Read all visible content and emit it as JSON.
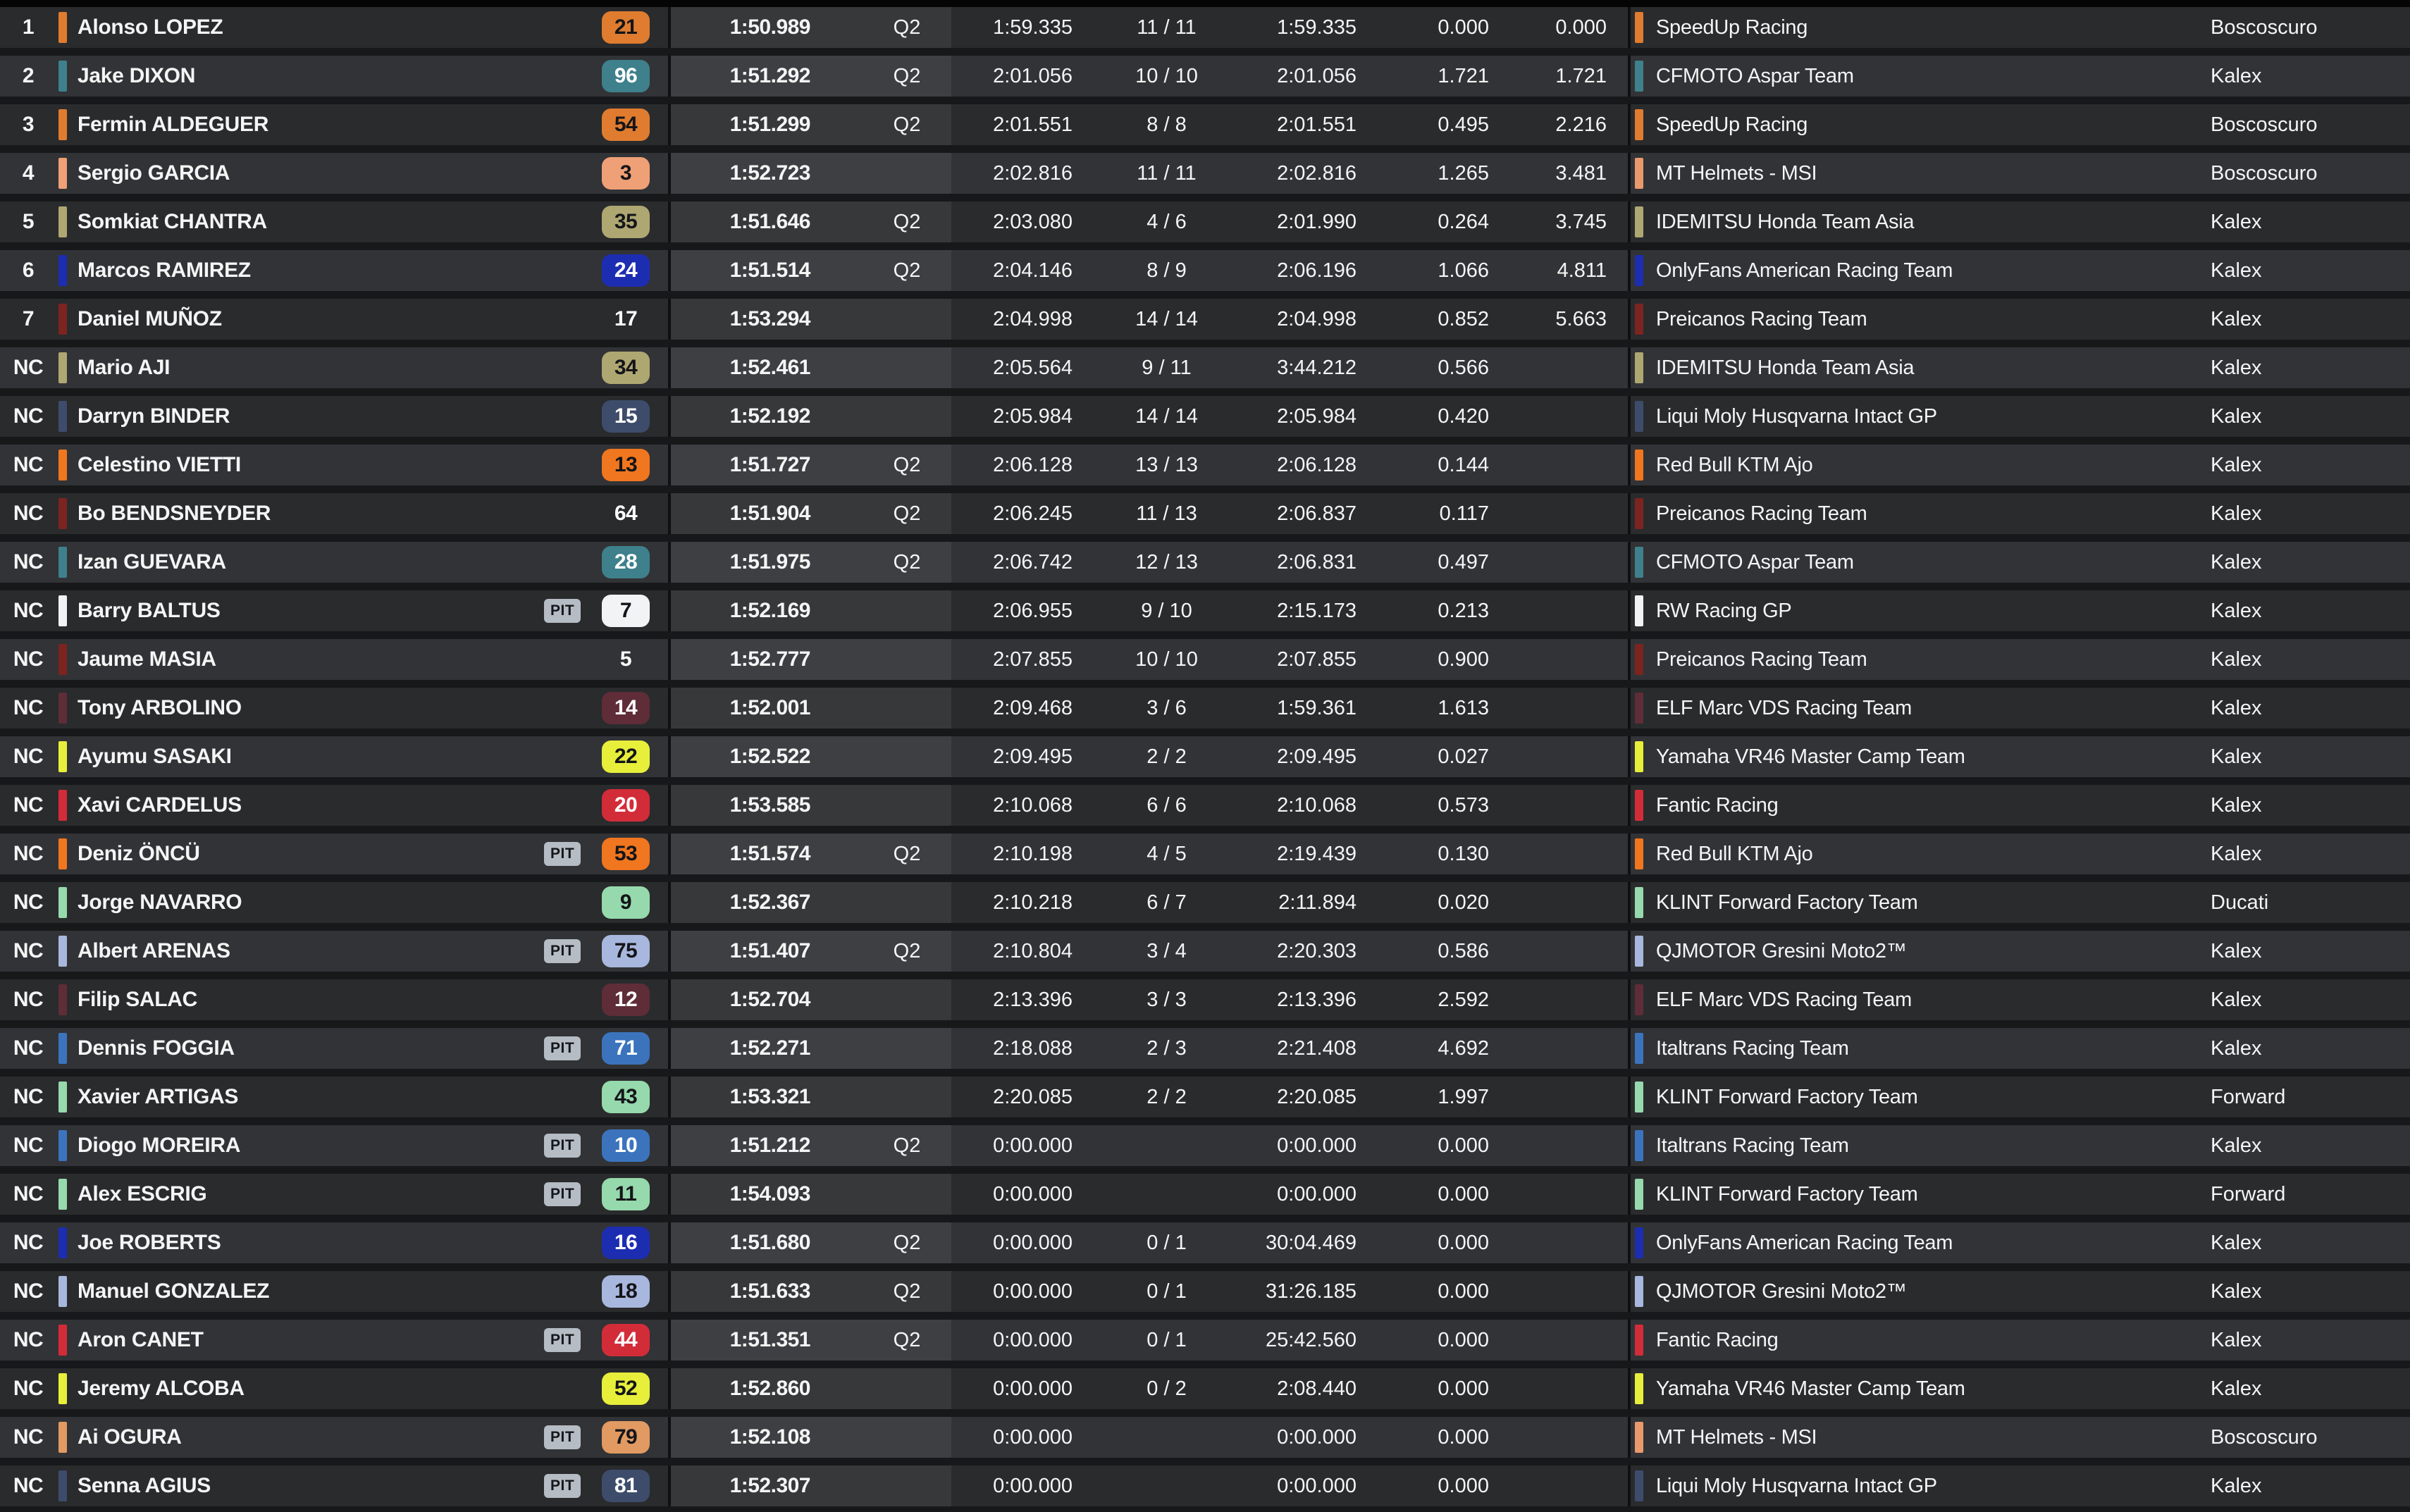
{
  "labels": {
    "session_flag": "Q2"
  },
  "colors": {
    "pit_badge_bg": "#b5bcc4",
    "pit_badge_text": "#16171b",
    "row_odd_bg": "#2a2b2d",
    "row_even_bg": "#323336",
    "best_band_odd": "#37383a",
    "best_band_even": "#3e3f42"
  },
  "rows": [
    {
      "pos": "1",
      "name": "Alonso LOPEZ",
      "pit": "",
      "num": "21",
      "num_bg": "#e07c2f",
      "num_fg": "#141519",
      "accent": "#e07c2f",
      "best": "1:50.989",
      "q2": "Q2",
      "last": "1:59.335",
      "laps": "11 / 11",
      "sbest": "1:59.335",
      "gap1": "0.000",
      "gap2": "0.000",
      "team": "SpeedUp Racing",
      "team_accent": "#e07c2f",
      "chassis": "Boscoscuro"
    },
    {
      "pos": "2",
      "name": "Jake DIXON",
      "pit": "",
      "num": "96",
      "num_bg": "#3e808b",
      "num_fg": "#ffffff",
      "accent": "#3e808b",
      "best": "1:51.292",
      "q2": "Q2",
      "last": "2:01.056",
      "laps": "10 / 10",
      "sbest": "2:01.056",
      "gap1": "1.721",
      "gap2": "1.721",
      "team": "CFMOTO Aspar Team",
      "team_accent": "#3e808b",
      "chassis": "Kalex"
    },
    {
      "pos": "3",
      "name": "Fermin ALDEGUER",
      "pit": "",
      "num": "54",
      "num_bg": "#e07c2f",
      "num_fg": "#141519",
      "accent": "#e07c2f",
      "best": "1:51.299",
      "q2": "Q2",
      "last": "2:01.551",
      "laps": "8 / 8",
      "sbest": "2:01.551",
      "gap1": "0.495",
      "gap2": "2.216",
      "team": "SpeedUp Racing",
      "team_accent": "#e07c2f",
      "chassis": "Boscoscuro"
    },
    {
      "pos": "4",
      "name": "Sergio GARCIA",
      "pit": "",
      "num": "3",
      "num_bg": "#efa077",
      "num_fg": "#141519",
      "accent": "#efa077",
      "best": "1:52.723",
      "q2": "",
      "last": "2:02.816",
      "laps": "11 / 11",
      "sbest": "2:02.816",
      "gap1": "1.265",
      "gap2": "3.481",
      "team": "MT Helmets - MSI",
      "team_accent": "#e89a6c",
      "chassis": "Boscoscuro"
    },
    {
      "pos": "5",
      "name": "Somkiat CHANTRA",
      "pit": "",
      "num": "35",
      "num_bg": "#aea772",
      "num_fg": "#141519",
      "accent": "#aea772",
      "best": "1:51.646",
      "q2": "Q2",
      "last": "2:03.080",
      "laps": "4 / 6",
      "sbest": "2:01.990",
      "gap1": "0.264",
      "gap2": "3.745",
      "team": "IDEMITSU Honda Team Asia",
      "team_accent": "#aea772",
      "chassis": "Kalex"
    },
    {
      "pos": "6",
      "name": "Marcos RAMIREZ",
      "pit": "",
      "num": "24",
      "num_bg": "#1d2db2",
      "num_fg": "#ffffff",
      "accent": "#1d2db2",
      "best": "1:51.514",
      "q2": "Q2",
      "last": "2:04.146",
      "laps": "8 / 9",
      "sbest": "2:06.196",
      "gap1": "1.066",
      "gap2": "4.811",
      "team": "OnlyFans American Racing Team",
      "team_accent": "#1d2db2",
      "chassis": "Kalex"
    },
    {
      "pos": "7",
      "name": "Daniel MUÑOZ",
      "pit": "",
      "num": "17",
      "num_bg": null,
      "num_fg": "#ffffff",
      "accent": "#7c2420",
      "best": "1:53.294",
      "q2": "",
      "last": "2:04.998",
      "laps": "14 / 14",
      "sbest": "2:04.998",
      "gap1": "0.852",
      "gap2": "5.663",
      "team": "Preicanos Racing Team",
      "team_accent": "#7c2420",
      "chassis": "Kalex"
    },
    {
      "pos": "NC",
      "name": "Mario AJI",
      "pit": "",
      "num": "34",
      "num_bg": "#aea772",
      "num_fg": "#141519",
      "accent": "#aea772",
      "best": "1:52.461",
      "q2": "",
      "last": "2:05.564",
      "laps": "9 / 11",
      "sbest": "3:44.212",
      "gap1": "0.566",
      "gap2": "",
      "team": "IDEMITSU Honda Team Asia",
      "team_accent": "#aea772",
      "chassis": "Kalex"
    },
    {
      "pos": "NC",
      "name": "Darryn BINDER",
      "pit": "",
      "num": "15",
      "num_bg": "#3e4c6b",
      "num_fg": "#ffffff",
      "accent": "#3e4c6b",
      "best": "1:52.192",
      "q2": "",
      "last": "2:05.984",
      "laps": "14 / 14",
      "sbest": "2:05.984",
      "gap1": "0.420",
      "gap2": "",
      "team": "Liqui Moly Husqvarna Intact GP",
      "team_accent": "#3e4c6b",
      "chassis": "Kalex"
    },
    {
      "pos": "NC",
      "name": "Celestino VIETTI",
      "pit": "",
      "num": "13",
      "num_bg": "#f0761f",
      "num_fg": "#141519",
      "accent": "#f0761f",
      "best": "1:51.727",
      "q2": "Q2",
      "last": "2:06.128",
      "laps": "13 / 13",
      "sbest": "2:06.128",
      "gap1": "0.144",
      "gap2": "",
      "team": "Red Bull KTM Ajo",
      "team_accent": "#f0761f",
      "chassis": "Kalex"
    },
    {
      "pos": "NC",
      "name": "Bo BENDSNEYDER",
      "pit": "",
      "num": "64",
      "num_bg": null,
      "num_fg": "#ffffff",
      "accent": "#7c2420",
      "best": "1:51.904",
      "q2": "Q2",
      "last": "2:06.245",
      "laps": "11 / 13",
      "sbest": "2:06.837",
      "gap1": "0.117",
      "gap2": "",
      "team": "Preicanos Racing Team",
      "team_accent": "#7c2420",
      "chassis": "Kalex"
    },
    {
      "pos": "NC",
      "name": "Izan GUEVARA",
      "pit": "",
      "num": "28",
      "num_bg": "#3e808b",
      "num_fg": "#ffffff",
      "accent": "#3e808b",
      "best": "1:51.975",
      "q2": "Q2",
      "last": "2:06.742",
      "laps": "12 / 13",
      "sbest": "2:06.831",
      "gap1": "0.497",
      "gap2": "",
      "team": "CFMOTO Aspar Team",
      "team_accent": "#3e808b",
      "chassis": "Kalex"
    },
    {
      "pos": "NC",
      "name": "Barry BALTUS",
      "pit": "PIT",
      "num": "7",
      "num_bg": "#f2f3f4",
      "num_fg": "#141519",
      "accent": "#f2f3f4",
      "best": "1:52.169",
      "q2": "",
      "last": "2:06.955",
      "laps": "9 / 10",
      "sbest": "2:15.173",
      "gap1": "0.213",
      "gap2": "",
      "team": "RW Racing GP",
      "team_accent": "#f2f3f4",
      "chassis": "Kalex"
    },
    {
      "pos": "NC",
      "name": "Jaume MASIA",
      "pit": "",
      "num": "5",
      "num_bg": null,
      "num_fg": "#ffffff",
      "accent": "#7c2420",
      "best": "1:52.777",
      "q2": "",
      "last": "2:07.855",
      "laps": "10 / 10",
      "sbest": "2:07.855",
      "gap1": "0.900",
      "gap2": "",
      "team": "Preicanos Racing Team",
      "team_accent": "#7c2420",
      "chassis": "Kalex"
    },
    {
      "pos": "NC",
      "name": "Tony ARBOLINO",
      "pit": "",
      "num": "14",
      "num_bg": "#5e2d38",
      "num_fg": "#ffffff",
      "accent": "#5e2d38",
      "best": "1:52.001",
      "q2": "",
      "last": "2:09.468",
      "laps": "3 / 6",
      "sbest": "1:59.361",
      "gap1": "1.613",
      "gap2": "",
      "team": "ELF Marc VDS Racing Team",
      "team_accent": "#5e2d38",
      "chassis": "Kalex"
    },
    {
      "pos": "NC",
      "name": "Ayumu SASAKI",
      "pit": "",
      "num": "22",
      "num_bg": "#e7ef3b",
      "num_fg": "#141519",
      "accent": "#e7ef3b",
      "best": "1:52.522",
      "q2": "",
      "last": "2:09.495",
      "laps": "2 / 2",
      "sbest": "2:09.495",
      "gap1": "0.027",
      "gap2": "",
      "team": "Yamaha VR46 Master Camp Team",
      "team_accent": "#e7ef3b",
      "chassis": "Kalex"
    },
    {
      "pos": "NC",
      "name": "Xavi CARDELUS",
      "pit": "",
      "num": "20",
      "num_bg": "#d32c39",
      "num_fg": "#ffffff",
      "accent": "#d32c39",
      "best": "1:53.585",
      "q2": "",
      "last": "2:10.068",
      "laps": "6 / 6",
      "sbest": "2:10.068",
      "gap1": "0.573",
      "gap2": "",
      "team": "Fantic Racing",
      "team_accent": "#d32c39",
      "chassis": "Kalex"
    },
    {
      "pos": "NC",
      "name": "Deniz ÖNCÜ",
      "pit": "PIT",
      "num": "53",
      "num_bg": "#f0761f",
      "num_fg": "#141519",
      "accent": "#f0761f",
      "best": "1:51.574",
      "q2": "Q2",
      "last": "2:10.198",
      "laps": "4 / 5",
      "sbest": "2:19.439",
      "gap1": "0.130",
      "gap2": "",
      "team": "Red Bull KTM Ajo",
      "team_accent": "#f0761f",
      "chassis": "Kalex"
    },
    {
      "pos": "NC",
      "name": "Jorge NAVARRO",
      "pit": "",
      "num": "9",
      "num_bg": "#96d9ac",
      "num_fg": "#141519",
      "accent": "#96d9ac",
      "best": "1:52.367",
      "q2": "",
      "last": "2:10.218",
      "laps": "6 / 7",
      "sbest": "2:11.894",
      "gap1": "0.020",
      "gap2": "",
      "team": "KLINT Forward Factory Team",
      "team_accent": "#96d9ac",
      "chassis": "Ducati"
    },
    {
      "pos": "NC",
      "name": "Albert ARENAS",
      "pit": "PIT",
      "num": "75",
      "num_bg": "#a8b7dd",
      "num_fg": "#141519",
      "accent": "#a8b7dd",
      "best": "1:51.407",
      "q2": "Q2",
      "last": "2:10.804",
      "laps": "3 / 4",
      "sbest": "2:20.303",
      "gap1": "0.586",
      "gap2": "",
      "team": "QJMOTOR Gresini Moto2™",
      "team_accent": "#a8b7dd",
      "chassis": "Kalex"
    },
    {
      "pos": "NC",
      "name": "Filip SALAC",
      "pit": "",
      "num": "12",
      "num_bg": "#5e2d38",
      "num_fg": "#ffffff",
      "accent": "#5e2d38",
      "best": "1:52.704",
      "q2": "",
      "last": "2:13.396",
      "laps": "3 / 3",
      "sbest": "2:13.396",
      "gap1": "2.592",
      "gap2": "",
      "team": "ELF Marc VDS Racing Team",
      "team_accent": "#5e2d38",
      "chassis": "Kalex"
    },
    {
      "pos": "NC",
      "name": "Dennis FOGGIA",
      "pit": "PIT",
      "num": "71",
      "num_bg": "#3b74bd",
      "num_fg": "#ffffff",
      "accent": "#3b74bd",
      "best": "1:52.271",
      "q2": "",
      "last": "2:18.088",
      "laps": "2 / 3",
      "sbest": "2:21.408",
      "gap1": "4.692",
      "gap2": "",
      "team": "Italtrans Racing Team",
      "team_accent": "#3b74bd",
      "chassis": "Kalex"
    },
    {
      "pos": "NC",
      "name": "Xavier ARTIGAS",
      "pit": "",
      "num": "43",
      "num_bg": "#96d9ac",
      "num_fg": "#141519",
      "accent": "#96d9ac",
      "best": "1:53.321",
      "q2": "",
      "last": "2:20.085",
      "laps": "2 / 2",
      "sbest": "2:20.085",
      "gap1": "1.997",
      "gap2": "",
      "team": "KLINT Forward Factory Team",
      "team_accent": "#96d9ac",
      "chassis": "Forward"
    },
    {
      "pos": "NC",
      "name": "Diogo MOREIRA",
      "pit": "PIT",
      "num": "10",
      "num_bg": "#3b74bd",
      "num_fg": "#ffffff",
      "accent": "#3b74bd",
      "best": "1:51.212",
      "q2": "Q2",
      "last": "0:00.000",
      "laps": "",
      "sbest": "0:00.000",
      "gap1": "0.000",
      "gap2": "",
      "team": "Italtrans Racing Team",
      "team_accent": "#3b74bd",
      "chassis": "Kalex"
    },
    {
      "pos": "NC",
      "name": "Alex ESCRIG",
      "pit": "PIT",
      "num": "11",
      "num_bg": "#96d9ac",
      "num_fg": "#141519",
      "accent": "#96d9ac",
      "best": "1:54.093",
      "q2": "",
      "last": "0:00.000",
      "laps": "",
      "sbest": "0:00.000",
      "gap1": "0.000",
      "gap2": "",
      "team": "KLINT Forward Factory Team",
      "team_accent": "#96d9ac",
      "chassis": "Forward"
    },
    {
      "pos": "NC",
      "name": "Joe ROBERTS",
      "pit": "",
      "num": "16",
      "num_bg": "#1d2db2",
      "num_fg": "#ffffff",
      "accent": "#1d2db2",
      "best": "1:51.680",
      "q2": "Q2",
      "last": "0:00.000",
      "laps": "0 / 1",
      "sbest": "30:04.469",
      "gap1": "0.000",
      "gap2": "",
      "team": "OnlyFans American Racing Team",
      "team_accent": "#1d2db2",
      "chassis": "Kalex"
    },
    {
      "pos": "NC",
      "name": "Manuel GONZALEZ",
      "pit": "",
      "num": "18",
      "num_bg": "#a8b7dd",
      "num_fg": "#141519",
      "accent": "#a8b7dd",
      "best": "1:51.633",
      "q2": "Q2",
      "last": "0:00.000",
      "laps": "0 / 1",
      "sbest": "31:26.185",
      "gap1": "0.000",
      "gap2": "",
      "team": "QJMOTOR Gresini Moto2™",
      "team_accent": "#a8b7dd",
      "chassis": "Kalex"
    },
    {
      "pos": "NC",
      "name": "Aron CANET",
      "pit": "PIT",
      "num": "44",
      "num_bg": "#d32c39",
      "num_fg": "#ffffff",
      "accent": "#d32c39",
      "best": "1:51.351",
      "q2": "Q2",
      "last": "0:00.000",
      "laps": "0 / 1",
      "sbest": "25:42.560",
      "gap1": "0.000",
      "gap2": "",
      "team": "Fantic Racing",
      "team_accent": "#d32c39",
      "chassis": "Kalex"
    },
    {
      "pos": "NC",
      "name": "Jeremy ALCOBA",
      "pit": "",
      "num": "52",
      "num_bg": "#e7ef3b",
      "num_fg": "#141519",
      "accent": "#e7ef3b",
      "best": "1:52.860",
      "q2": "",
      "last": "0:00.000",
      "laps": "0 / 2",
      "sbest": "2:08.440",
      "gap1": "0.000",
      "gap2": "",
      "team": "Yamaha VR46 Master Camp Team",
      "team_accent": "#e7ef3b",
      "chassis": "Kalex"
    },
    {
      "pos": "NC",
      "name": "Ai OGURA",
      "pit": "PIT",
      "num": "79",
      "num_bg": "#e09a62",
      "num_fg": "#141519",
      "accent": "#e09a62",
      "best": "1:52.108",
      "q2": "",
      "last": "0:00.000",
      "laps": "",
      "sbest": "0:00.000",
      "gap1": "0.000",
      "gap2": "",
      "team": "MT Helmets - MSI",
      "team_accent": "#e89a6c",
      "chassis": "Boscoscuro"
    },
    {
      "pos": "NC",
      "name": "Senna AGIUS",
      "pit": "PIT",
      "num": "81",
      "num_bg": "#3e4c6b",
      "num_fg": "#ffffff",
      "accent": "#3e4c6b",
      "best": "1:52.307",
      "q2": "",
      "last": "0:00.000",
      "laps": "",
      "sbest": "0:00.000",
      "gap1": "0.000",
      "gap2": "",
      "team": "Liqui Moly Husqvarna Intact GP",
      "team_accent": "#3e4c6b",
      "chassis": "Kalex"
    }
  ]
}
